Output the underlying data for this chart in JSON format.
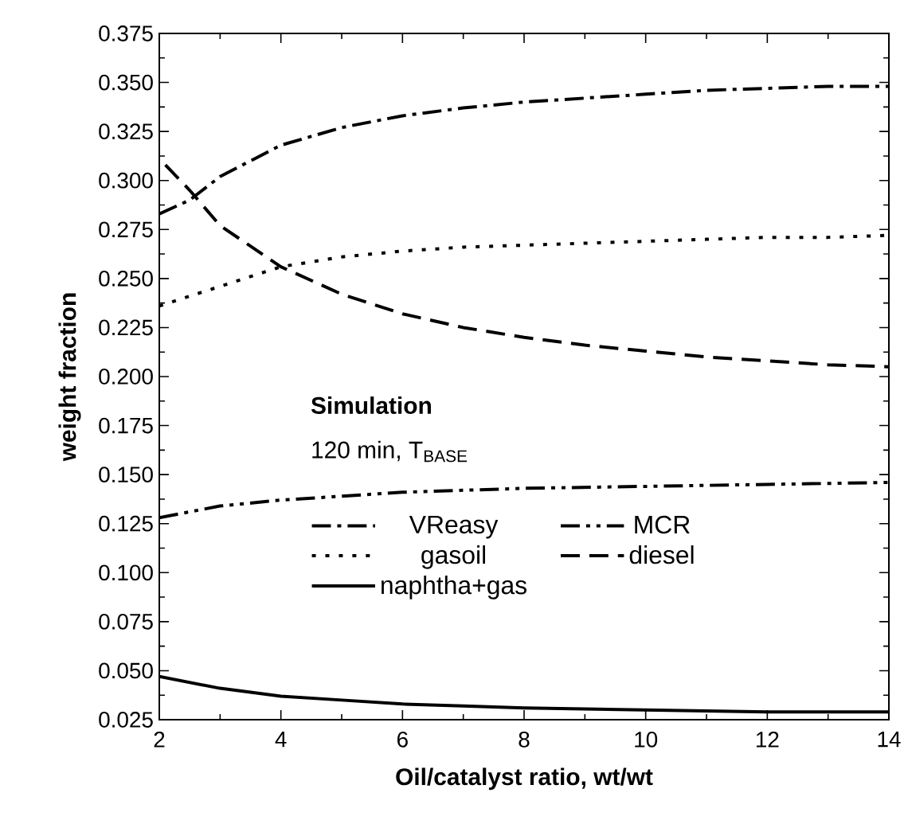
{
  "chart_data": {
    "type": "line",
    "xlabel": "Oil/catalyst ratio, wt/wt",
    "ylabel": "weight fraction",
    "legend_title": "Simulation",
    "annotations": [
      "120 min, T$_{BASE}$"
    ],
    "legend": "bottom",
    "xlim": [
      2,
      14
    ],
    "xticks": [
      2,
      4,
      6,
      8,
      10,
      12,
      14
    ],
    "ylim": [
      0.025,
      0.375
    ],
    "yticks": [
      {
        "value": 0.025,
        "label": "0.025"
      },
      {
        "value": 0.05,
        "label": "0.050"
      },
      {
        "value": 0.075,
        "label": "0.075"
      },
      {
        "value": 0.1,
        "label": "0.100"
      },
      {
        "value": 0.125,
        "label": "0.125"
      },
      {
        "value": 0.15,
        "label": "0.150"
      },
      {
        "value": 0.175,
        "label": "0.175"
      },
      {
        "value": 0.2,
        "label": "0.200"
      },
      {
        "value": 0.225,
        "label": "0.225"
      },
      {
        "value": 0.25,
        "label": "0.250"
      },
      {
        "value": 0.275,
        "label": "0.275"
      },
      {
        "value": 0.3,
        "label": "0.300"
      },
      {
        "value": 0.325,
        "label": "0.325"
      },
      {
        "value": 0.35,
        "label": "0.350"
      },
      {
        "value": 0.375,
        "label": "0.375"
      }
    ],
    "grid": false,
    "series": [
      {
        "name": "VReasy",
        "color": "#000000",
        "line_style": "dashdot",
        "x": [
          2,
          2.5,
          3,
          4,
          5,
          6,
          7,
          8,
          9,
          10,
          11,
          12,
          13,
          14
        ],
        "values": [
          0.283,
          0.29,
          0.302,
          0.318,
          0.327,
          0.333,
          0.337,
          0.34,
          0.342,
          0.344,
          0.346,
          0.347,
          0.348,
          0.348
        ]
      },
      {
        "name": "MCR",
        "color": "#000000",
        "line_style": "dashdotdot",
        "x": [
          2,
          3,
          4,
          5,
          6,
          7,
          8,
          10,
          12,
          14
        ],
        "values": [
          0.128,
          0.134,
          0.137,
          0.139,
          0.141,
          0.142,
          0.143,
          0.144,
          0.145,
          0.146
        ]
      },
      {
        "name": "gasoil",
        "color": "#000000",
        "line_style": "dotted",
        "x": [
          2,
          3,
          4,
          5,
          6,
          7,
          8,
          9,
          10,
          11,
          12,
          13,
          14
        ],
        "values": [
          0.236,
          0.246,
          0.256,
          0.261,
          0.264,
          0.266,
          0.267,
          0.268,
          0.269,
          0.27,
          0.271,
          0.271,
          0.272
        ]
      },
      {
        "name": "diesel",
        "color": "#000000",
        "line_style": "dashed",
        "x": [
          2.1,
          2.5,
          3,
          4,
          5,
          6,
          7,
          8,
          9,
          10,
          11,
          12,
          13,
          14
        ],
        "values": [
          0.308,
          0.295,
          0.277,
          0.256,
          0.242,
          0.232,
          0.225,
          0.22,
          0.216,
          0.213,
          0.21,
          0.208,
          0.206,
          0.205
        ]
      },
      {
        "name": "naphtha+gas",
        "color": "#000000",
        "line_style": "solid",
        "x": [
          2,
          3,
          4,
          5,
          6,
          7,
          8,
          10,
          12,
          14
        ],
        "values": [
          0.047,
          0.041,
          0.037,
          0.035,
          0.033,
          0.032,
          0.031,
          0.03,
          0.029,
          0.029
        ]
      }
    ]
  }
}
